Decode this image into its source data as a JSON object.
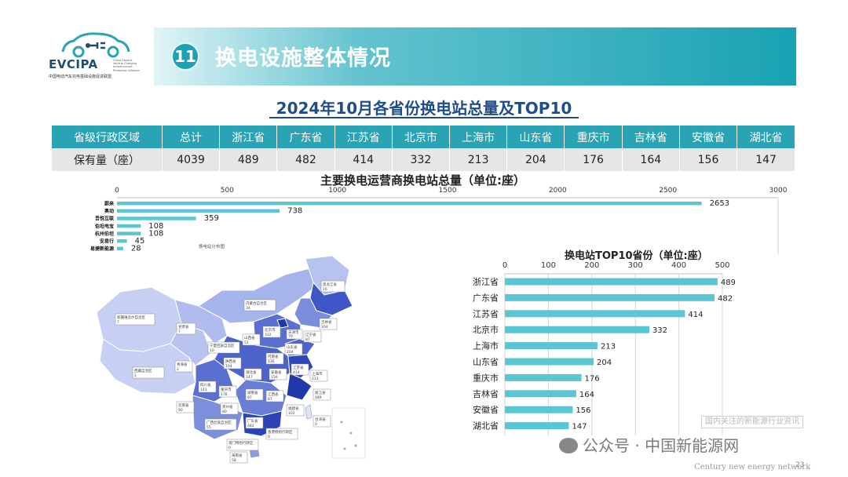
{
  "header": {
    "logo_name": "EVCIPA",
    "logo_subtitle": "中国电动汽车充电基础设施促进联盟",
    "logo_english": "China Electric Vehicle Charging Infrastructure Promotion Alliance",
    "section_number": "11",
    "section_title": "换电设施整体情况"
  },
  "main_title": "2024年10月各省份换电站总量及TOP10",
  "table": {
    "headers": [
      "省级行政区域",
      "总计",
      "浙江省",
      "广东省",
      "江苏省",
      "北京市",
      "上海市",
      "山东省",
      "重庆市",
      "吉林省",
      "安徽省",
      "湖北省"
    ],
    "row": [
      "保有量（座）",
      "4039",
      "489",
      "482",
      "414",
      "332",
      "213",
      "204",
      "176",
      "164",
      "156",
      "147"
    ]
  },
  "colors": {
    "accent": "#2aa4b5",
    "bar": "#5bc6d3",
    "title_blue": "#1e4d8c",
    "map_light": "#c7d0f2",
    "map_mid": "#8a9be0",
    "map_dark": "#3f57c6",
    "map_darkest": "#1f3aa8"
  },
  "chart_data": [
    {
      "type": "bar",
      "orientation": "horizontal",
      "title": "主要换电运营商换电站总量（单位:座）",
      "categories": [
        "蔚来",
        "奥动",
        "吾悦互联",
        "伯坦电宝",
        "杭州伯坦",
        "安易行",
        "易捷新能源"
      ],
      "values": [
        2653,
        738,
        359,
        108,
        108,
        45,
        28
      ],
      "xlim": [
        0,
        3000
      ],
      "xticks": [
        0,
        500,
        1000,
        1500,
        2000,
        2500,
        3000
      ],
      "axis_position": "top",
      "grid": false
    },
    {
      "type": "bar",
      "orientation": "horizontal",
      "title": "换电站TOP10省份（单位:座）",
      "categories": [
        "浙江省",
        "广东省",
        "江苏省",
        "北京市",
        "上海市",
        "山东省",
        "重庆市",
        "吉林省",
        "安徽省",
        "湖北省"
      ],
      "values": [
        489,
        482,
        414,
        332,
        213,
        204,
        176,
        164,
        156,
        147
      ],
      "xlim": [
        0,
        500
      ],
      "xticks": [
        0,
        100,
        200,
        300,
        400,
        500
      ],
      "axis_position": "top",
      "grid": true
    }
  ],
  "map": {
    "caption": "换电站分布图",
    "labels": [
      {
        "name": "新疆维吾尔自治区",
        "value": "7"
      },
      {
        "name": "西藏自治区",
        "value": "2"
      },
      {
        "name": "甘肃省",
        "value": "7"
      },
      {
        "name": "青海省",
        "value": "2"
      },
      {
        "name": "内蒙古自治区",
        "value": "34"
      },
      {
        "name": "黑龙江省",
        "value": "16"
      },
      {
        "name": "吉林省",
        "value": "164"
      },
      {
        "name": "辽宁省",
        "value": "87"
      },
      {
        "name": "北京市",
        "value": "332"
      },
      {
        "name": "天津市",
        "value": "79"
      },
      {
        "name": "山西省",
        "value": "51"
      },
      {
        "name": "宁夏回族自治区",
        "value": "10"
      },
      {
        "name": "陕西省",
        "value": "104"
      },
      {
        "name": "河南省",
        "value": "136"
      },
      {
        "name": "山东省",
        "value": "204"
      },
      {
        "name": "江苏省",
        "value": "414"
      },
      {
        "name": "上海市",
        "value": "213"
      },
      {
        "name": "四川省",
        "value": "143"
      },
      {
        "name": "重庆市",
        "value": "176"
      },
      {
        "name": "湖北省",
        "value": "147"
      },
      {
        "name": "安徽省",
        "value": "156"
      },
      {
        "name": "浙江省",
        "value": "489"
      },
      {
        "name": "云南省",
        "value": "90"
      },
      {
        "name": "贵州省",
        "value": "80"
      },
      {
        "name": "湖南省",
        "value": "97"
      },
      {
        "name": "江西省",
        "value": "87"
      },
      {
        "name": "福建省",
        "value": "102"
      },
      {
        "name": "台湾省",
        "value": "0"
      },
      {
        "name": "广西壮族自治区",
        "value": "55"
      },
      {
        "name": "广东省",
        "value": "482"
      },
      {
        "name": "香港特别行政区",
        "value": "0"
      },
      {
        "name": "澳门特别行政区",
        "value": "0"
      },
      {
        "name": "海南省",
        "value": "58"
      }
    ]
  },
  "watermark": {
    "box_text": "国内关注的新能源行业资讯",
    "wechat": "公众号 · 中国新能源网",
    "name": "中国新能源网",
    "url": "Century new energy network",
    "page": "23"
  }
}
